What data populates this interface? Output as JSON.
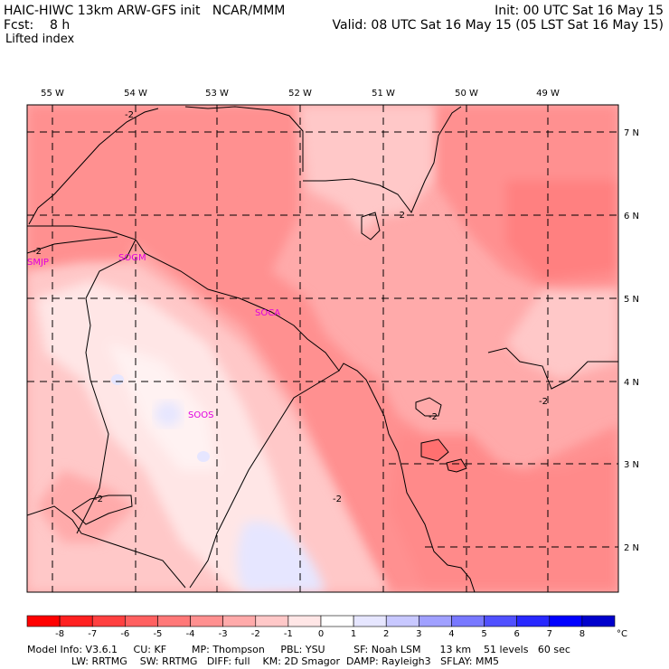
{
  "header": {
    "model_title": "HAIC-HIWC 13km ARW-GFS init   NCAR/MMM",
    "fcst_label": "Fcst:    8 h",
    "field_name": "Lifted index",
    "init_label": "Init: 00 UTC Sat 16 May 15",
    "valid_label": "Valid: 08 UTC Sat 16 May 15 (05 LST Sat 16 May 15)"
  },
  "map": {
    "lon_labels": [
      "55 W",
      "54 W",
      "53 W",
      "52 W",
      "51 W",
      "50 W",
      "49 W"
    ],
    "lat_labels": [
      "7 N",
      "6 N",
      "5 N",
      "4 N",
      "3 N",
      "2 N"
    ],
    "station_labels": [
      "SMJP",
      "SOGM",
      "SOCA",
      "SOOS"
    ],
    "contour_labels": [
      "-2",
      "-2",
      "-2",
      "-2",
      "-2",
      "-2",
      "-2"
    ]
  },
  "colorbar": {
    "values": [
      "-8",
      "-7",
      "-6",
      "-5",
      "-4",
      "-3",
      "-2",
      "-1",
      "0",
      "1",
      "2",
      "3",
      "4",
      "5",
      "6",
      "7",
      "8"
    ],
    "unit": "°C",
    "colors": [
      "#ff0000",
      "#ff2020",
      "#ff4040",
      "#ff6060",
      "#ff7878",
      "#ff9090",
      "#ffaaaa",
      "#ffc8c8",
      "#ffe6e6",
      "#ffffff",
      "#e6e6ff",
      "#c8c8ff",
      "#a0a0ff",
      "#7878ff",
      "#5050ff",
      "#2828ff",
      "#0000ff",
      "#0000cc"
    ]
  },
  "footer": {
    "line1": "Model Info: V3.6.1     CU: KF        MP: Thompson     PBL: YSU         SF: Noah LSM      13 km    51 levels   60 sec",
    "line2": "              LW: RRTMG    SW: RRTMG   DIFF: full    KM: 2D Smagor  DAMP: Rayleigh3   SFLAY: MM5"
  }
}
